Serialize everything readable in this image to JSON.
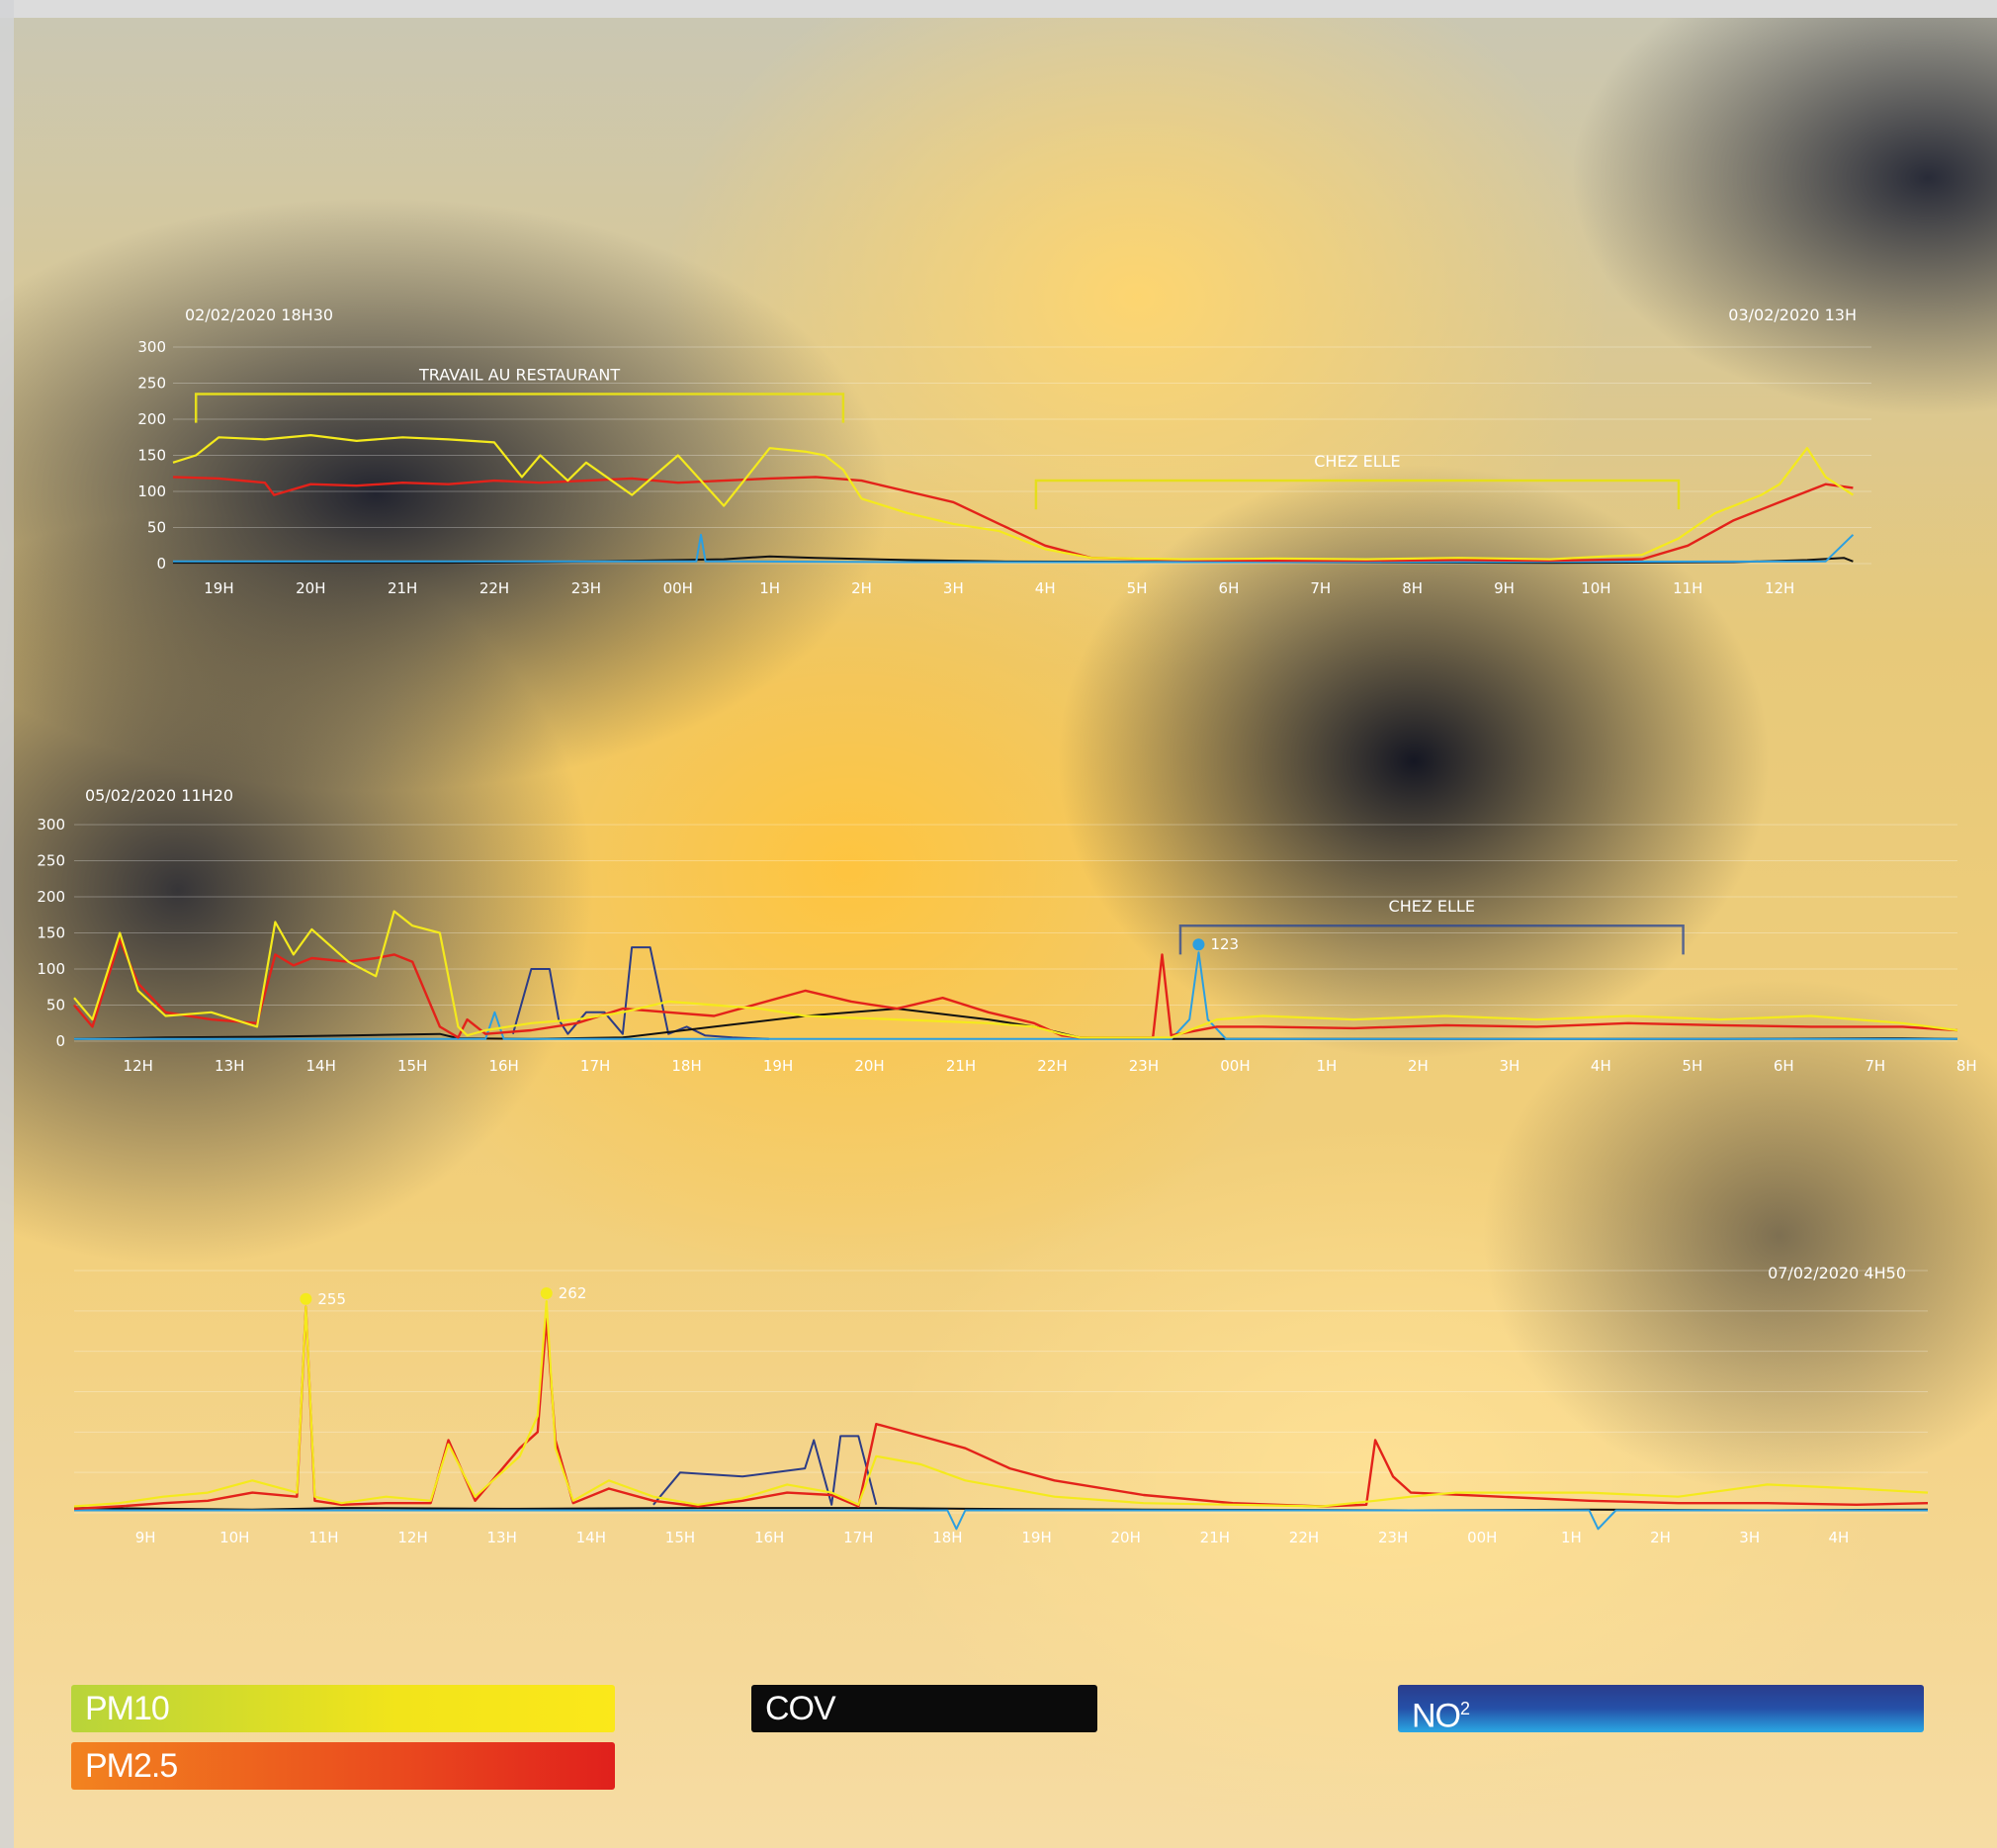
{
  "colors": {
    "pm10": "#f4ea1c",
    "pm25": "#e3221a",
    "cov": "#111111",
    "no2": "#2c9fe0",
    "no2_dark": "#2c3c86"
  },
  "legend": {
    "pm10": "PM10",
    "pm25": "PM2.5",
    "cov": "COV",
    "no2": "NO",
    "no2_sup": "2"
  },
  "chart_data": [
    {
      "type": "line",
      "start_label": "02/02/2020 18H30",
      "end_label": "03/02/2020 13H",
      "ylim": [
        0,
        300
      ],
      "yticks": [
        0,
        50,
        100,
        150,
        200,
        250,
        300
      ],
      "xlim": [
        0,
        18.5
      ],
      "xticks": [
        "19H",
        "20H",
        "21H",
        "22H",
        "23H",
        "00H",
        "1H",
        "2H",
        "3H",
        "4H",
        "5H",
        "6H",
        "7H",
        "8H",
        "9H",
        "10H",
        "11H",
        "12H"
      ],
      "xtick_pos": [
        0.5,
        1.5,
        2.5,
        3.5,
        4.5,
        5.5,
        6.5,
        7.5,
        8.5,
        9.5,
        10.5,
        11.5,
        12.5,
        13.5,
        14.5,
        15.5,
        16.5,
        17.5
      ],
      "annotations": [
        {
          "label": "TRAVAIL AU RESTAURANT",
          "x0": 0.25,
          "x1": 7.3,
          "y": 235
        },
        {
          "label": "CHEZ ELLE",
          "x0": 9.4,
          "x1": 16.4,
          "y": 115
        }
      ],
      "markers": [],
      "series": [
        {
          "key": "pm10",
          "x": [
            0,
            0.25,
            0.5,
            1,
            1.5,
            2,
            2.5,
            3,
            3.5,
            3.8,
            4,
            4.3,
            4.5,
            5,
            5.5,
            6,
            6.5,
            6.9,
            7.1,
            7.3,
            7.5,
            8,
            8.5,
            9,
            9.5,
            10,
            11,
            12,
            13,
            14,
            15,
            15.6,
            16,
            16.4,
            16.8,
            17,
            17.3,
            17.5,
            17.8,
            18,
            18.3
          ],
          "values": [
            140,
            150,
            175,
            172,
            178,
            170,
            175,
            172,
            168,
            120,
            150,
            115,
            140,
            95,
            150,
            80,
            160,
            155,
            150,
            130,
            90,
            70,
            55,
            45,
            20,
            8,
            6,
            7,
            6,
            8,
            6,
            10,
            12,
            35,
            70,
            80,
            95,
            110,
            160,
            120,
            95
          ]
        },
        {
          "key": "pm25",
          "x": [
            0,
            0.5,
            1,
            1.1,
            1.5,
            2,
            2.5,
            3,
            3.5,
            4,
            4.5,
            5,
            5.5,
            6,
            6.5,
            7,
            7.5,
            8,
            8.5,
            9,
            9.5,
            10,
            11,
            12,
            13,
            14,
            15,
            16,
            16.5,
            17,
            17.5,
            18,
            18.3
          ],
          "values": [
            120,
            118,
            112,
            95,
            110,
            108,
            112,
            110,
            115,
            112,
            115,
            118,
            112,
            115,
            118,
            120,
            115,
            100,
            85,
            55,
            25,
            8,
            5,
            4,
            4,
            5,
            4,
            6,
            25,
            60,
            85,
            110,
            105
          ]
        },
        {
          "key": "cov",
          "x": [
            0,
            3,
            4,
            5,
            5.5,
            6,
            6.5,
            7,
            8,
            9,
            12,
            15,
            17,
            17.8,
            18.2,
            18.3
          ],
          "values": [
            1,
            1,
            2,
            4,
            5,
            6,
            10,
            8,
            5,
            3,
            2,
            1,
            2,
            5,
            8,
            3
          ]
        },
        {
          "key": "no2",
          "x": [
            0,
            5,
            5.7,
            5.75,
            5.8,
            6,
            8,
            12,
            18,
            18.3
          ],
          "values": [
            3,
            3,
            3,
            40,
            3,
            3,
            2,
            2,
            3,
            40
          ]
        }
      ]
    },
    {
      "type": "line",
      "start_label": "05/02/2020 11H20",
      "end_label": "",
      "ylim": [
        0,
        300
      ],
      "yticks": [
        0,
        50,
        100,
        150,
        200,
        250,
        300
      ],
      "xlim": [
        0,
        20.6
      ],
      "xticks": [
        "12H",
        "13H",
        "14H",
        "15H",
        "16H",
        "17H",
        "18H",
        "19H",
        "20H",
        "21H",
        "22H",
        "23H",
        "00H",
        "1H",
        "2H",
        "3H",
        "4H",
        "5H",
        "6H",
        "7H",
        "8H"
      ],
      "xtick_pos": [
        0.7,
        1.7,
        2.7,
        3.7,
        4.7,
        5.7,
        6.7,
        7.7,
        8.7,
        9.7,
        10.7,
        11.7,
        12.7,
        13.7,
        14.7,
        15.7,
        16.7,
        17.7,
        18.7,
        19.7,
        20.7
      ],
      "annotations": [
        {
          "label": "CHEZ ELLE",
          "x0": 12.1,
          "x1": 17.6,
          "y": 160
        }
      ],
      "markers": [
        {
          "label": "123",
          "x": 12.3,
          "y": 123,
          "color": "#2c9fe0"
        }
      ],
      "series": [
        {
          "key": "pm10",
          "x": [
            0,
            0.2,
            0.5,
            0.7,
            1,
            1.5,
            2,
            2.2,
            2.4,
            2.6,
            3,
            3.3,
            3.5,
            3.7,
            4,
            4.2,
            4.3,
            4.5,
            5,
            5.5,
            6,
            6.5,
            7,
            7.5,
            8,
            9,
            10,
            10.5,
            10.8,
            11,
            11.5,
            12,
            12.5,
            13,
            14,
            15,
            16,
            17,
            18,
            19,
            20,
            20.6
          ],
          "values": [
            60,
            30,
            150,
            70,
            35,
            40,
            20,
            165,
            120,
            155,
            110,
            90,
            180,
            160,
            150,
            20,
            8,
            15,
            25,
            30,
            40,
            55,
            50,
            45,
            35,
            30,
            25,
            20,
            10,
            5,
            5,
            5,
            30,
            35,
            30,
            35,
            30,
            35,
            30,
            35,
            25,
            15
          ]
        },
        {
          "key": "pm25",
          "x": [
            0,
            0.2,
            0.5,
            0.7,
            1,
            1.5,
            2,
            2.2,
            2.4,
            2.6,
            3,
            3.3,
            3.5,
            3.7,
            4,
            4.2,
            4.3,
            4.5,
            5,
            5.5,
            6,
            6.5,
            7,
            8,
            8.5,
            9,
            9.5,
            10,
            10.5,
            10.8,
            11,
            11.5,
            11.8,
            11.9,
            12,
            12.5,
            13,
            14,
            15,
            16,
            17,
            18,
            19,
            20,
            20.6
          ],
          "values": [
            50,
            20,
            140,
            80,
            40,
            30,
            25,
            120,
            105,
            115,
            110,
            115,
            120,
            110,
            20,
            5,
            30,
            10,
            15,
            25,
            45,
            40,
            35,
            70,
            55,
            45,
            60,
            40,
            25,
            8,
            5,
            5,
            5,
            120,
            8,
            20,
            20,
            18,
            22,
            20,
            25,
            22,
            20,
            20,
            15
          ]
        },
        {
          "key": "cov",
          "x": [
            0,
            1,
            2,
            3,
            4,
            4.2,
            5,
            6,
            7,
            8,
            9,
            10,
            10.5,
            11,
            12,
            15,
            18,
            20,
            20.6
          ],
          "values": [
            3,
            5,
            6,
            8,
            10,
            4,
            3,
            5,
            20,
            35,
            45,
            30,
            20,
            5,
            3,
            3,
            3,
            4,
            3
          ]
        },
        {
          "key": "no2_dark",
          "x": [
            4.8,
            5.0,
            5.2,
            5.3,
            5.4,
            5.6,
            5.8,
            6.0,
            6.1,
            6.3,
            6.5,
            6.7,
            6.9,
            7.2,
            7.6
          ],
          "values": [
            10,
            100,
            100,
            30,
            10,
            40,
            40,
            10,
            130,
            130,
            10,
            20,
            8,
            5,
            3
          ]
        },
        {
          "key": "no2",
          "x": [
            0,
            4,
            4.5,
            4.6,
            4.7,
            5,
            12,
            12.2,
            12.3,
            12.4,
            12.6,
            20.6
          ],
          "values": [
            3,
            3,
            3,
            40,
            3,
            3,
            3,
            30,
            123,
            30,
            3,
            3
          ]
        }
      ]
    },
    {
      "type": "line",
      "start_label": "",
      "end_label": "07/02/2020 4H50",
      "ylim": [
        0,
        300
      ],
      "yticks": [],
      "xlim": [
        0,
        20.8
      ],
      "xticks": [
        "9H",
        "10H",
        "11H",
        "12H",
        "13H",
        "14H",
        "15H",
        "16H",
        "17H",
        "18H",
        "19H",
        "20H",
        "21H",
        "22H",
        "23H",
        "00H",
        "1H",
        "2H",
        "3H",
        "4H"
      ],
      "xtick_pos": [
        0.8,
        1.8,
        2.8,
        3.8,
        4.8,
        5.8,
        6.8,
        7.8,
        8.8,
        9.8,
        10.8,
        11.8,
        12.8,
        13.8,
        14.8,
        15.8,
        16.8,
        17.8,
        18.8,
        19.8
      ],
      "annotations": [],
      "markers": [
        {
          "label": "255",
          "x": 2.6,
          "y": 255,
          "color": "#f4ea1c"
        },
        {
          "label": "262",
          "x": 5.3,
          "y": 262,
          "color": "#f4ea1c"
        }
      ],
      "series": [
        {
          "key": "pm10",
          "x": [
            0,
            0.5,
            1,
            1.5,
            2,
            2.5,
            2.6,
            2.7,
            3,
            3.5,
            4,
            4.2,
            4.5,
            5,
            5.2,
            5.3,
            5.4,
            5.6,
            6,
            6.5,
            7,
            7.5,
            8,
            8.5,
            8.8,
            9,
            9.5,
            10,
            11,
            12,
            13,
            14,
            14.6,
            15,
            15.5,
            16,
            17,
            18,
            19,
            20,
            20.8
          ],
          "values": [
            8,
            12,
            20,
            25,
            40,
            25,
            255,
            20,
            12,
            20,
            15,
            85,
            20,
            70,
            120,
            262,
            80,
            15,
            40,
            20,
            10,
            18,
            35,
            25,
            10,
            70,
            60,
            40,
            20,
            12,
            10,
            8,
            15,
            20,
            25,
            25,
            25,
            20,
            35,
            30,
            25
          ]
        },
        {
          "key": "pm25",
          "x": [
            0,
            0.5,
            1,
            1.5,
            2,
            2.5,
            2.6,
            2.7,
            3,
            3.5,
            4,
            4.2,
            4.5,
            5,
            5.2,
            5.3,
            5.4,
            5.6,
            6,
            6.5,
            7,
            7.5,
            8,
            8.5,
            8.8,
            9,
            9.5,
            10,
            10.5,
            11,
            12,
            13,
            14,
            14.5,
            14.6,
            14.8,
            15,
            16,
            17,
            18,
            19,
            20,
            20.8
          ],
          "values": [
            5,
            8,
            12,
            15,
            25,
            20,
            255,
            15,
            10,
            12,
            12,
            90,
            15,
            80,
            100,
            240,
            90,
            12,
            30,
            15,
            8,
            15,
            25,
            22,
            8,
            110,
            95,
            80,
            55,
            40,
            22,
            12,
            8,
            10,
            90,
            45,
            25,
            20,
            15,
            12,
            12,
            10,
            12
          ]
        },
        {
          "key": "cov",
          "x": [
            0,
            2,
            3,
            5,
            7,
            9,
            10,
            12,
            15,
            17,
            19,
            20.8
          ],
          "values": [
            6,
            4,
            6,
            5,
            6,
            6,
            5,
            4,
            3,
            4,
            3,
            4
          ]
        },
        {
          "key": "no2_dark",
          "x": [
            6.5,
            6.8,
            7.5,
            8.2,
            8.3,
            8.5,
            8.6,
            8.8,
            9.0
          ],
          "values": [
            10,
            50,
            45,
            55,
            90,
            10,
            95,
            95,
            10
          ]
        },
        {
          "key": "no2",
          "x": [
            0,
            0.5,
            1,
            2,
            3,
            4,
            5,
            6,
            7,
            8,
            9,
            9.8,
            9.9,
            10,
            12,
            15,
            17,
            17.1,
            17.3,
            20.8
          ],
          "values": [
            3,
            3,
            3,
            3,
            3,
            3,
            3,
            3,
            3,
            3,
            3,
            3,
            -20,
            3,
            3,
            3,
            3,
            -20,
            3,
            3
          ]
        }
      ]
    }
  ]
}
